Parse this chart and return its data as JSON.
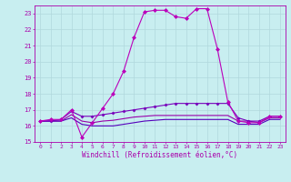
{
  "xlabel": "Windchill (Refroidissement éolien,°C)",
  "background_color": "#c8eef0",
  "grid_color": "#b0d8dc",
  "ylim": [
    15,
    23.5
  ],
  "xlim": [
    -0.5,
    23.5
  ],
  "yticks": [
    15,
    16,
    17,
    18,
    19,
    20,
    21,
    22,
    23
  ],
  "xticks": [
    0,
    1,
    2,
    3,
    4,
    5,
    6,
    7,
    8,
    9,
    10,
    11,
    12,
    13,
    14,
    15,
    16,
    17,
    18,
    19,
    20,
    21,
    22,
    23
  ],
  "series": [
    {
      "x": [
        0,
        1,
        2,
        3,
        4,
        5,
        6,
        7,
        8,
        9,
        10,
        11,
        12,
        13,
        14,
        15,
        16,
        17,
        18,
        19,
        20,
        21,
        22,
        23
      ],
      "y": [
        16.3,
        16.4,
        16.4,
        17.0,
        15.3,
        16.2,
        17.1,
        18.0,
        19.4,
        21.5,
        23.1,
        23.2,
        23.2,
        22.8,
        22.7,
        23.3,
        23.3,
        20.8,
        17.5,
        16.3,
        16.2,
        16.2,
        16.6,
        16.6
      ],
      "color": "#bb00bb",
      "linewidth": 0.8,
      "marker": "D",
      "markersize": 2.0,
      "zorder": 4
    },
    {
      "x": [
        0,
        1,
        2,
        3,
        4,
        5,
        6,
        7,
        8,
        9,
        10,
        11,
        12,
        13,
        14,
        15,
        16,
        17,
        18,
        19,
        20,
        21,
        22,
        23
      ],
      "y": [
        16.3,
        16.3,
        16.4,
        16.9,
        16.6,
        16.6,
        16.7,
        16.8,
        16.9,
        17.0,
        17.1,
        17.2,
        17.3,
        17.4,
        17.4,
        17.4,
        17.4,
        17.4,
        17.4,
        16.5,
        16.3,
        16.3,
        16.6,
        16.6
      ],
      "color": "#7700bb",
      "linewidth": 0.8,
      "marker": "D",
      "markersize": 1.5,
      "zorder": 3
    },
    {
      "x": [
        0,
        1,
        2,
        3,
        4,
        5,
        6,
        7,
        8,
        9,
        10,
        11,
        12,
        13,
        14,
        15,
        16,
        17,
        18,
        19,
        20,
        21,
        22,
        23
      ],
      "y": [
        16.3,
        16.3,
        16.3,
        16.7,
        16.3,
        16.2,
        16.3,
        16.35,
        16.45,
        16.55,
        16.6,
        16.65,
        16.65,
        16.65,
        16.65,
        16.65,
        16.65,
        16.65,
        16.65,
        16.3,
        16.3,
        16.2,
        16.5,
        16.5
      ],
      "color": "#9900aa",
      "linewidth": 0.8,
      "marker": null,
      "markersize": 0,
      "zorder": 2
    },
    {
      "x": [
        0,
        1,
        2,
        3,
        4,
        5,
        6,
        7,
        8,
        9,
        10,
        11,
        12,
        13,
        14,
        15,
        16,
        17,
        18,
        19,
        20,
        21,
        22,
        23
      ],
      "y": [
        16.3,
        16.3,
        16.3,
        16.5,
        16.1,
        16.0,
        16.0,
        16.0,
        16.1,
        16.2,
        16.3,
        16.35,
        16.4,
        16.4,
        16.4,
        16.4,
        16.4,
        16.4,
        16.4,
        16.1,
        16.1,
        16.1,
        16.4,
        16.4
      ],
      "color": "#5500bb",
      "linewidth": 0.8,
      "marker": null,
      "markersize": 0,
      "zorder": 2
    }
  ]
}
